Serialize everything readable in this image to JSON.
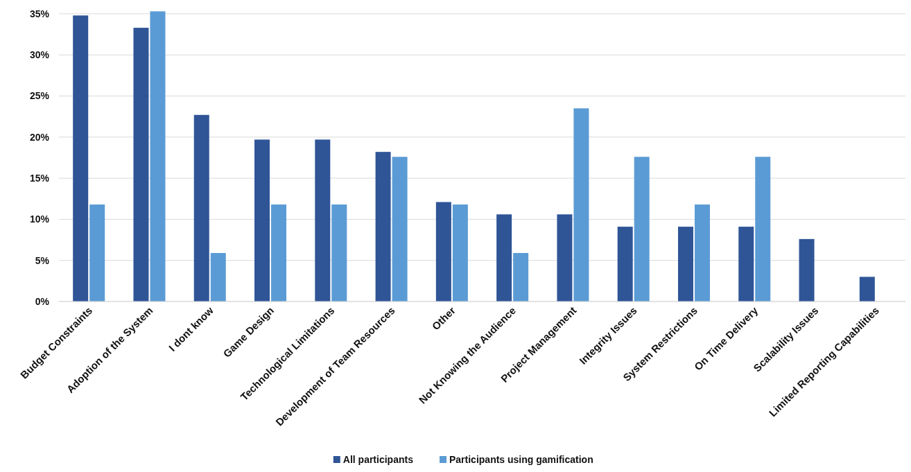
{
  "chart_data": {
    "type": "bar",
    "categories": [
      "Budget Constraints",
      "Adoption of the System",
      "I dont know",
      "Game Design",
      "Technological Limitations",
      "Development of Team Resources",
      "Other",
      "Not Knowing the Audience",
      "Project Management",
      "Integrity Issues",
      "System Restrictions",
      "On Time Delivery",
      "Scalability Issues",
      "Limited Reporting Capabilities"
    ],
    "series": [
      {
        "name": "All participants",
        "color": "#2f5597",
        "values": [
          34.8,
          33.3,
          22.7,
          19.7,
          19.7,
          18.2,
          12.1,
          10.6,
          10.6,
          9.1,
          9.1,
          9.1,
          7.6,
          3.0
        ]
      },
      {
        "name": "Participants using gamification",
        "color": "#5b9bd5",
        "values": [
          11.8,
          35.3,
          5.9,
          11.8,
          11.8,
          17.6,
          11.8,
          5.9,
          23.5,
          17.6,
          11.8,
          17.6,
          0,
          0
        ]
      }
    ],
    "ylim": [
      0,
      35.5
    ],
    "yticks": [
      {
        "value": 0,
        "label": "0%"
      },
      {
        "value": 5,
        "label": "5%"
      },
      {
        "value": 10,
        "label": "10%"
      },
      {
        "value": 15,
        "label": "15%"
      },
      {
        "value": 20,
        "label": "20%"
      },
      {
        "value": 25,
        "label": "25%"
      },
      {
        "value": 30,
        "label": "30%"
      },
      {
        "value": 35,
        "label": "35%"
      }
    ],
    "grid": "y",
    "legend": "bottom"
  }
}
